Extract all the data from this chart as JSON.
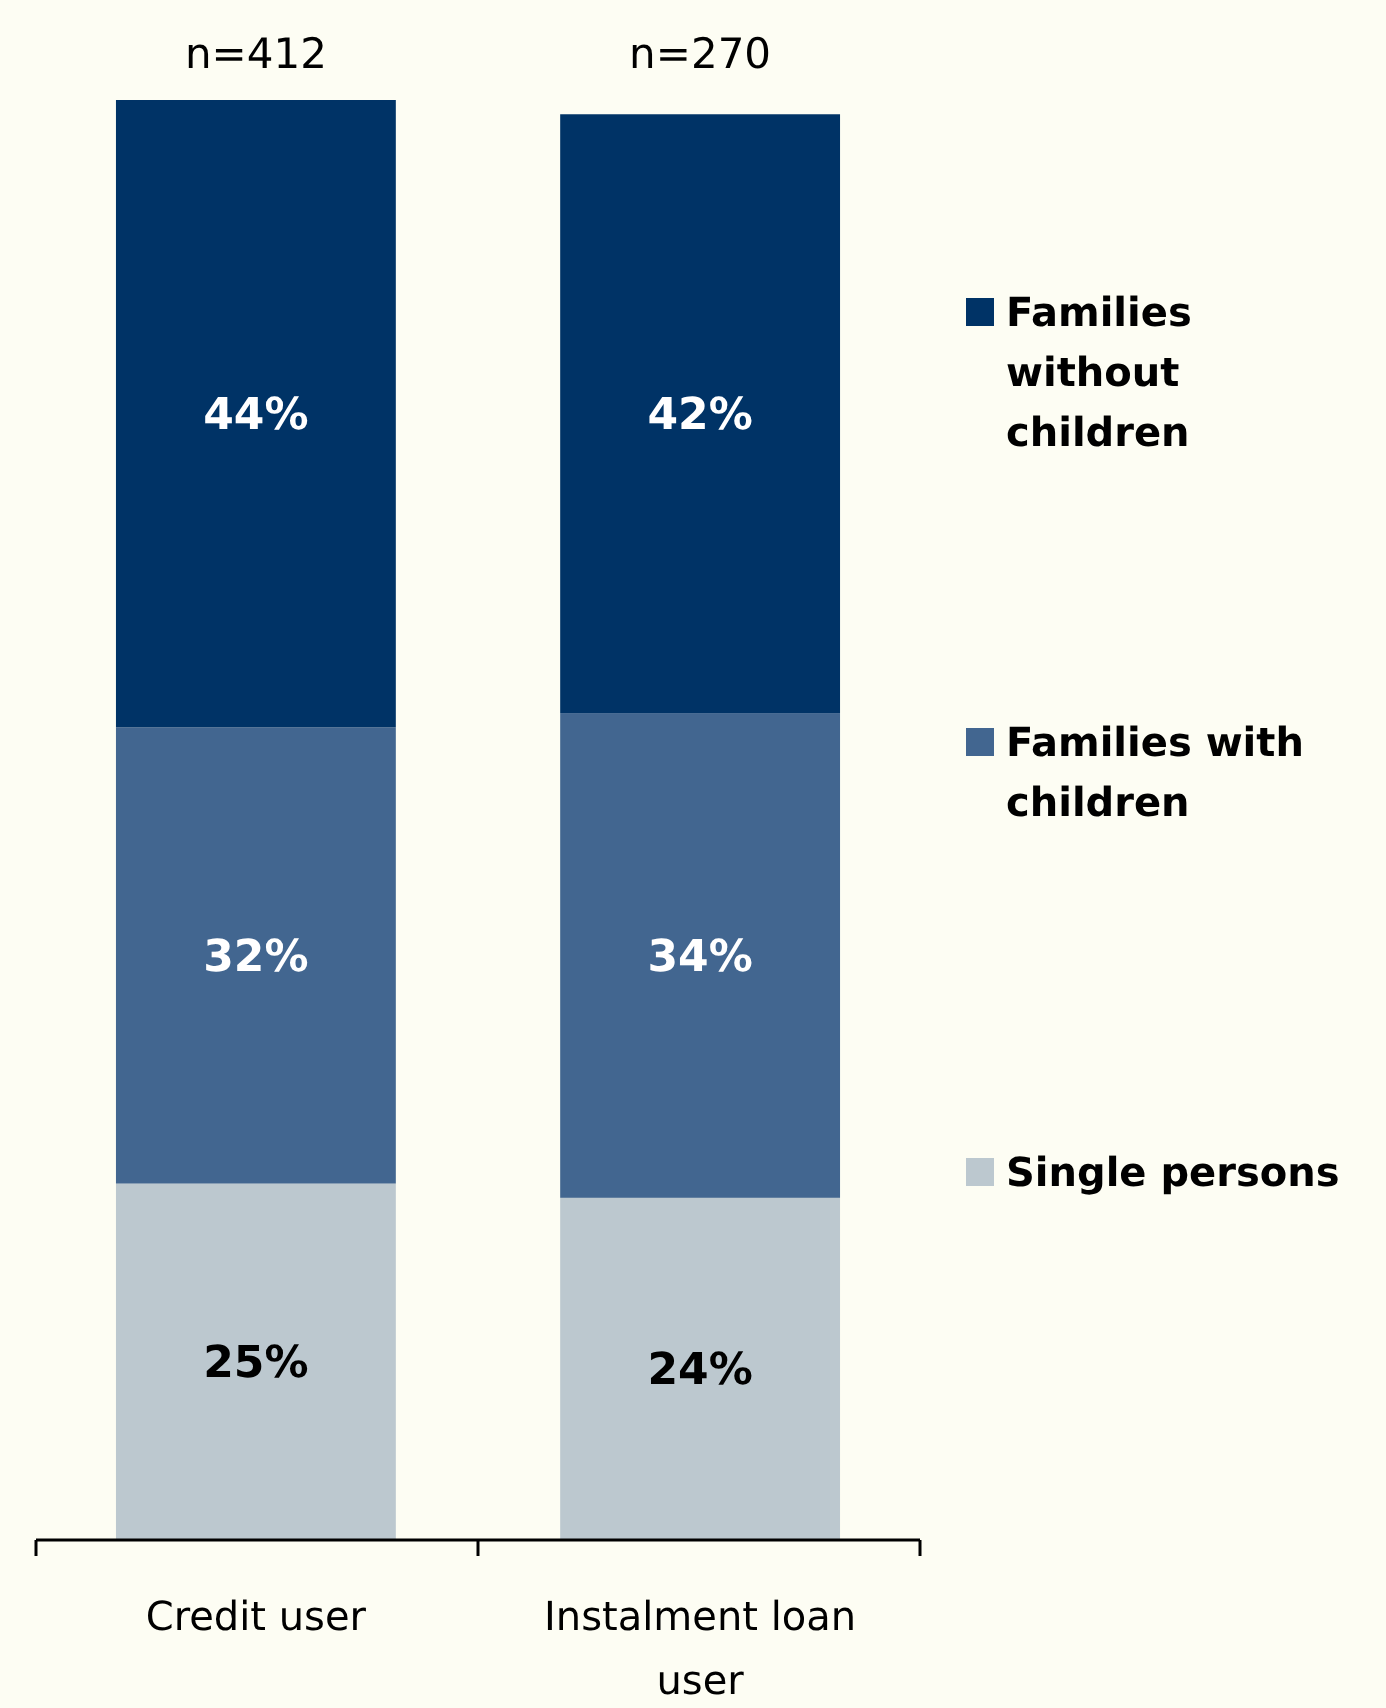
{
  "chart_data": {
    "type": "bar",
    "stacked": true,
    "categories": [
      "Credit user",
      "Instalment loan user"
    ],
    "series": [
      {
        "name": "Single persons",
        "color": "#bcc8cf",
        "values": [
          25,
          24
        ],
        "value_labels": [
          "25%",
          "24%"
        ]
      },
      {
        "name": "Families with children",
        "color": "#426690",
        "values": [
          32,
          34
        ],
        "value_labels": [
          "32%",
          "34%"
        ]
      },
      {
        "name": "Families without children",
        "color": "#003366",
        "values": [
          44,
          42
        ],
        "value_labels": [
          "44%",
          "42%"
        ]
      }
    ],
    "legend": "right",
    "annotations": [
      "n=412",
      "n=270"
    ]
  }
}
